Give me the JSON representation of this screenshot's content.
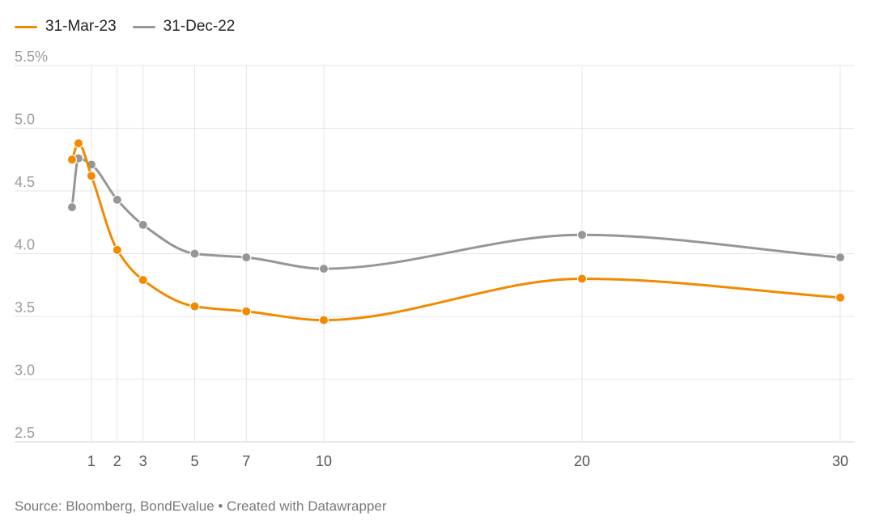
{
  "legend": [
    {
      "label": "31-Mar-23",
      "color": "#F28A00"
    },
    {
      "label": "31-Dec-22",
      "color": "#969696"
    }
  ],
  "source": "Source: Bloomberg, BondEvalue • Created with Datawrapper",
  "chart_data": {
    "type": "line",
    "title": "",
    "xlabel": "",
    "ylabel": "",
    "xlim": [
      0,
      30
    ],
    "ylim": [
      2.5,
      5.5
    ],
    "x_ticks": [
      1,
      2,
      3,
      5,
      7,
      10,
      20,
      30
    ],
    "x_tick_labels": [
      "1",
      "2",
      "3",
      "5",
      "7",
      "10",
      "20",
      "30"
    ],
    "y_ticks": [
      2.5,
      3.0,
      3.5,
      4.0,
      4.5,
      5.0,
      5.5
    ],
    "y_tick_labels": [
      "2.5",
      "3.0",
      "3.5",
      "4.0",
      "4.5",
      "5.0",
      "5.5%"
    ],
    "grid": true,
    "legend_position": "top-left",
    "series": [
      {
        "name": "31-Mar-23",
        "color": "#F28A00",
        "x": [
          0.25,
          0.5,
          1,
          2,
          3,
          5,
          7,
          10,
          20,
          30
        ],
        "y": [
          4.75,
          4.88,
          4.62,
          4.03,
          3.79,
          3.58,
          3.54,
          3.47,
          3.8,
          3.65
        ]
      },
      {
        "name": "31-Dec-22",
        "color": "#969696",
        "x": [
          0.25,
          0.5,
          1,
          2,
          3,
          5,
          7,
          10,
          20,
          30
        ],
        "y": [
          4.37,
          4.76,
          4.71,
          4.43,
          4.23,
          4.0,
          3.97,
          3.88,
          4.15,
          3.97
        ]
      }
    ]
  }
}
